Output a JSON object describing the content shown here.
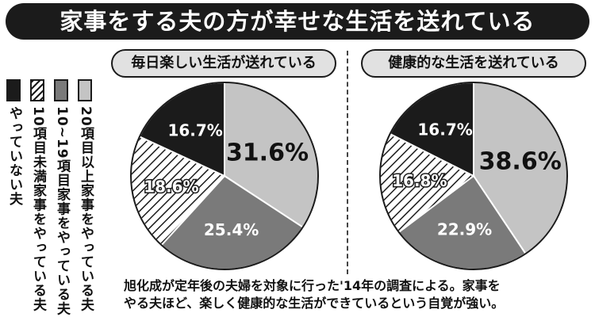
{
  "title": "家事をする夫の方が幸せな生活を送れている",
  "legend": [
    {
      "label": "20項目以上家事をやっている夫",
      "fill": "light-gray",
      "color": "#c4c4c4"
    },
    {
      "label": "10~19項目家事をやっている夫",
      "fill": "dark-gray",
      "color": "#7a7a7a"
    },
    {
      "label": "10項目未満家事をやっている夫",
      "fill": "hatched",
      "color": "#ffffff"
    },
    {
      "label": "やっていない夫",
      "fill": "black",
      "color": "#1b1b1b"
    }
  ],
  "chart_data": [
    {
      "type": "pie",
      "title": "毎日楽しい生活が送れている",
      "slices": [
        {
          "series": "20項目以上家事をやっている夫",
          "value": 31.6,
          "label": "31.6%"
        },
        {
          "series": "10~19項目家事をやっている夫",
          "value": 25.4,
          "label": "25.4%"
        },
        {
          "series": "10項目未満家事をやっている夫",
          "value": 18.6,
          "label": "18.6%"
        },
        {
          "series": "やっていない夫",
          "value": 16.7,
          "label": "16.7%"
        }
      ]
    },
    {
      "type": "pie",
      "title": "健康的な生活を送れている",
      "slices": [
        {
          "series": "20項目以上家事をやっている夫",
          "value": 38.6,
          "label": "38.6%"
        },
        {
          "series": "10~19項目家事をやっている夫",
          "value": 22.9,
          "label": "22.9%"
        },
        {
          "series": "10項目未満家事をやっている夫",
          "value": 16.8,
          "label": "16.8%"
        },
        {
          "series": "やっていない夫",
          "value": 16.7,
          "label": "16.7%"
        }
      ]
    }
  ],
  "caption": {
    "line1": "旭化成が定年後の夫婦を対象に行った'14年の調査による。家事を",
    "line2": "やる夫ほど、楽しく健康的な生活ができているという自覚が強い。"
  }
}
